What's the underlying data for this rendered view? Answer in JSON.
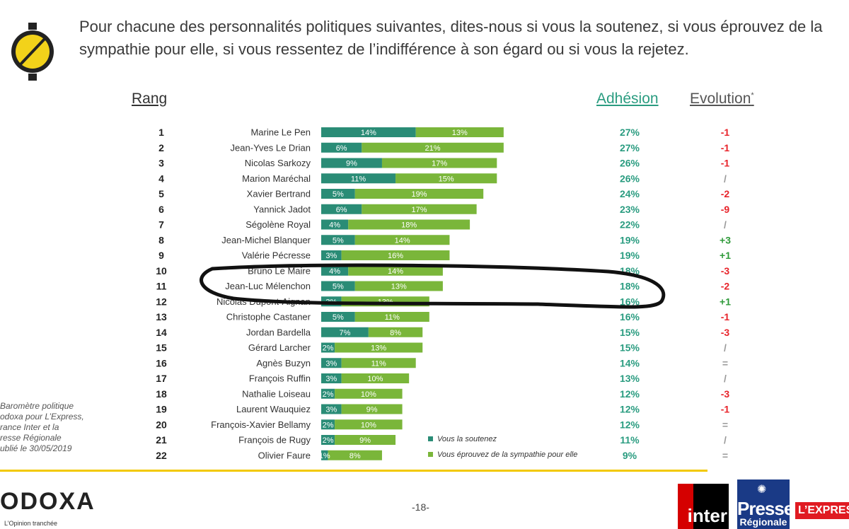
{
  "header": {
    "question_line1": "Pour chacune des personnalités politiques suivantes, dites-nous si vous la soutenez, si vous éprouvez de la",
    "question_line2": "sympathie pour elle, si vous ressentez de l’indifférence à son égard ou si vous la rejetez."
  },
  "columns": {
    "rang": "Rang",
    "adhesion": "Adhésion",
    "evolution": "Evolution",
    "evolution_mark": "*"
  },
  "colors": {
    "soutien": "#2a8c76",
    "sympathie": "#7ab63a",
    "adhesion_text": "#2a9c80",
    "negative": "#e8232a",
    "positive": "#2f9a3a",
    "neutral": "#999999",
    "brand_yellow": "#f2c900"
  },
  "chart_data": {
    "type": "bar",
    "stacked": true,
    "orientation": "horizontal",
    "title": "Pour chacune des personnalités politiques suivantes, dites-nous si vous la soutenez, si vous éprouvez de la sympathie pour elle, si vous ressentez de l’indifférence à son égard ou si vous la rejetez.",
    "categories": [
      "Marine Le Pen",
      "Jean-Yves Le Drian",
      "Nicolas Sarkozy",
      "Marion Maréchal",
      "Xavier Bertrand",
      "Yannick Jadot",
      "Ségolène Royal",
      "Jean-Michel Blanquer",
      "Valérie Pécresse",
      "Bruno Le Maire",
      "Jean-Luc Mélenchon",
      "Nicolas Dupont-Aignan",
      "Christophe Castaner",
      "Jordan Bardella",
      "Gérard Larcher",
      "Agnès Buzyn",
      "François Ruffin",
      "Nathalie Loiseau",
      "Laurent Wauquiez",
      "François-Xavier Bellamy",
      "François de Rugy",
      "Olivier Faure"
    ],
    "ranks": [
      "1",
      "2",
      "3",
      "4",
      "5",
      "6",
      "7",
      "8",
      "9",
      "10",
      "11",
      "12",
      "13",
      "14",
      "15",
      "16",
      "17",
      "18",
      "19",
      "20",
      "21",
      "22"
    ],
    "series": [
      {
        "name": "Vous la soutenez",
        "values": [
          14,
          6,
          9,
          11,
          5,
          6,
          4,
          5,
          3,
          4,
          5,
          3,
          5,
          7,
          2,
          3,
          3,
          2,
          3,
          2,
          2,
          1
        ]
      },
      {
        "name": "Vous éprouvez de la sympathie pour elle",
        "values": [
          13,
          21,
          17,
          15,
          19,
          17,
          18,
          14,
          16,
          14,
          13,
          13,
          11,
          8,
          13,
          11,
          10,
          10,
          9,
          10,
          9,
          8
        ]
      }
    ],
    "adhesion": [
      "27%",
      "27%",
      "26%",
      "26%",
      "24%",
      "23%",
      "22%",
      "19%",
      "19%",
      "18%",
      "18%",
      "16%",
      "16%",
      "15%",
      "15%",
      "14%",
      "13%",
      "12%",
      "12%",
      "12%",
      "11%",
      "9%"
    ],
    "evolution": [
      "-1",
      "-1",
      "-1",
      "/",
      "-2",
      "-9",
      "/",
      "+3",
      "+1",
      "-3",
      "-2",
      "+1",
      "-1",
      "-3",
      "/",
      "=",
      "/",
      "-3",
      "-1",
      "=",
      "/",
      "="
    ],
    "xlim": [
      0,
      30
    ],
    "legend": [
      "Vous la soutenez",
      "Vous éprouvez de la sympathie pour elle"
    ],
    "legend_position": "bottom-right",
    "annotation": "hand-drawn loop around rows 10-12"
  },
  "source": {
    "line1": "Baromètre politique",
    "line2": "odoxa pour L’Express,",
    "line3": "rance Inter et la",
    "line4": "resse Régionale",
    "line5": "ublié le 30/05/2019"
  },
  "footer": {
    "brand": "ODOXA",
    "tagline": "L’Opinion tranchée",
    "page_number": "-18-",
    "partner1": "inter",
    "partner2_line1": "Presse",
    "partner2_line2": "Régionale",
    "partner3": "L’EXPRESS"
  }
}
